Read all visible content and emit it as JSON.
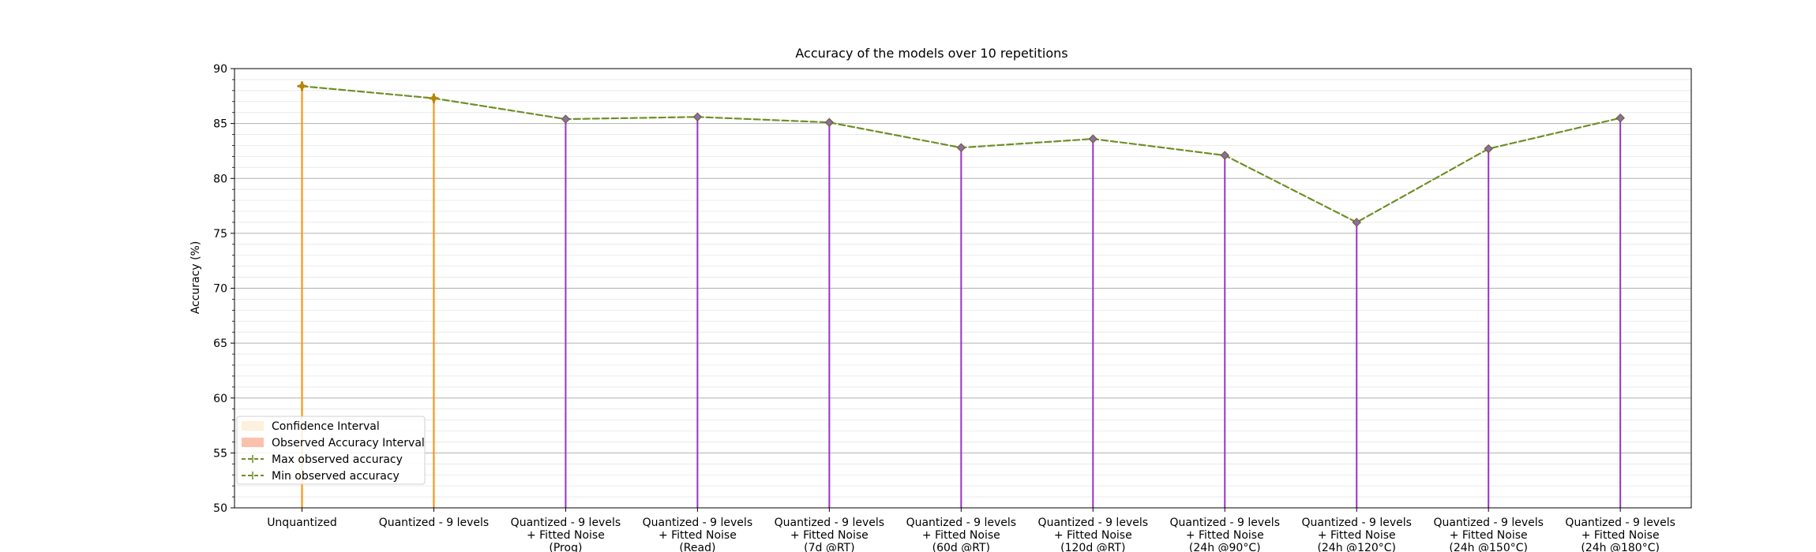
{
  "chart_data": {
    "type": "line",
    "title": "Accuracy of the models over 10 repetitions",
    "xlabel": "",
    "ylabel": "Accuracy (%)",
    "ylim": [
      50,
      90
    ],
    "yticks": [
      "50",
      "55",
      "60",
      "65",
      "70",
      "75",
      "80",
      "85",
      "90"
    ],
    "grid": "horizontal major and minor",
    "legend_position": "lower-left",
    "categories": [
      [
        "Unquantized"
      ],
      [
        "Quantized - 9 levels"
      ],
      [
        "Quantized - 9 levels",
        "+ Fitted Noise",
        "(Prog)"
      ],
      [
        "Quantized - 9 levels",
        "+ Fitted Noise",
        "(Read)"
      ],
      [
        "Quantized - 9 levels",
        "+ Fitted Noise",
        "(7d @RT)"
      ],
      [
        "Quantized - 9 levels",
        "+ Fitted Noise",
        "(60d @RT)"
      ],
      [
        "Quantized - 9 levels",
        "+ Fitted Noise",
        "(120d @RT)"
      ],
      [
        "Quantized - 9 levels",
        "+ Fitted Noise",
        "(24h @90°C)"
      ],
      [
        "Quantized - 9 levels",
        "+ Fitted Noise",
        "(24h @120°C)"
      ],
      [
        "Quantized - 9 levels",
        "+ Fitted Noise",
        "(24h @150°C)"
      ],
      [
        "Quantized - 9 levels",
        "+ Fitted Noise",
        "(24h @180°C)"
      ]
    ],
    "series": [
      {
        "name": "Max observed accuracy",
        "values": [
          88.4,
          87.3,
          85.4,
          85.6,
          85.1,
          82.8,
          83.6,
          82.1,
          76.0,
          82.7,
          85.5
        ]
      },
      {
        "name": "Min observed accuracy",
        "values": [
          88.4,
          87.3,
          85.4,
          85.6,
          85.1,
          82.8,
          83.6,
          82.1,
          76.0,
          82.7,
          85.5
        ]
      }
    ],
    "interval_lines": {
      "lower": [
        50,
        50,
        50,
        50,
        50,
        50,
        50,
        50,
        50,
        50,
        50
      ],
      "upper": [
        88.4,
        87.3,
        85.4,
        85.6,
        85.1,
        82.8,
        83.6,
        82.1,
        76.0,
        82.7,
        85.5
      ],
      "colors": [
        "#ff8c00",
        "#ff8c00",
        "#9932cc",
        "#9932cc",
        "#9932cc",
        "#9932cc",
        "#9932cc",
        "#9932cc",
        "#9932cc",
        "#9932cc",
        "#9932cc"
      ]
    },
    "legend": [
      {
        "label": "Confidence Interval",
        "kind": "patch",
        "color": "#fdf0dc"
      },
      {
        "label": "Observed Accuracy Interval",
        "kind": "patch",
        "color": "#fcc1ad"
      },
      {
        "label": "Max observed accuracy",
        "kind": "line",
        "color": "#6b8e23"
      },
      {
        "label": "Min observed accuracy",
        "kind": "line",
        "color": "#6b8e23"
      }
    ],
    "colors": {
      "line": "#6b8e23",
      "marker_unquantized": "#b8860b",
      "marker_noise": "#8b6fa0",
      "grid": "#b0b0b0",
      "minor_grid": "#e6e6e6"
    }
  }
}
